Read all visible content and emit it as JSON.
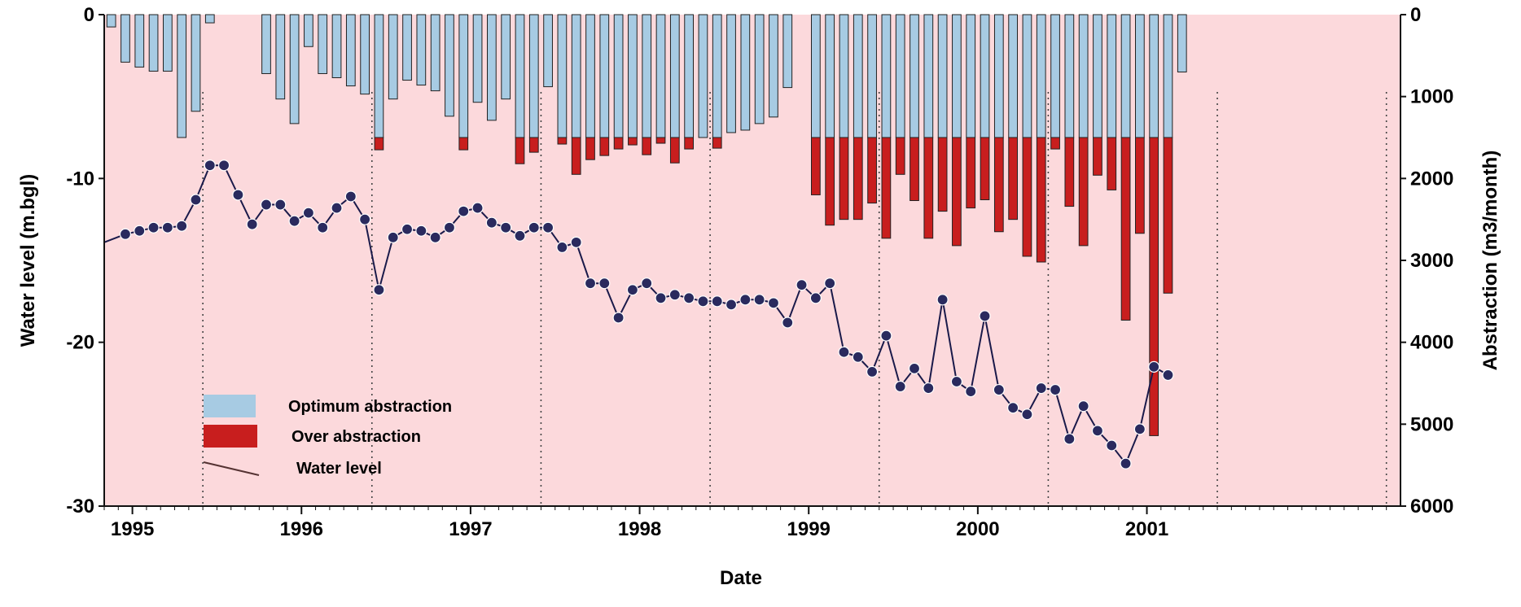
{
  "chart_data": {
    "type": "bar+line",
    "xlabel": "Date",
    "ylabel_left": "Water level (m.bgl)",
    "ylabel_right": "Abstraction (m3/month)",
    "y_left_ticks": [
      "0",
      "-10",
      "-20",
      "-30"
    ],
    "y_left_range": [
      -30,
      0
    ],
    "y_right_ticks": [
      "0",
      "1000",
      "2000",
      "3000",
      "4000",
      "5000",
      "6000"
    ],
    "y_right_range": [
      0,
      6000
    ],
    "year_labels": [
      "1995",
      "1996",
      "1997",
      "1998",
      "1999",
      "2000",
      "2001"
    ],
    "optimum_threshold": 1500,
    "legend": {
      "optimum": "Optimum abstraction",
      "over": "Over abstraction",
      "line": "Water level"
    },
    "colors": {
      "background": "#fcd9dc",
      "optimum": "#a7cbe3",
      "over": "#c81e1e",
      "line": "#1a1a4a",
      "marker": "#2a2a5e"
    },
    "months": [
      "1994-11",
      "1994-12",
      "1995-01",
      "1995-02",
      "1995-03",
      "1995-04",
      "1995-05",
      "1995-06",
      "1995-07",
      "1995-08",
      "1995-09",
      "1995-10",
      "1995-11",
      "1995-12",
      "1996-01",
      "1996-02",
      "1996-03",
      "1996-04",
      "1996-05",
      "1996-06",
      "1996-07",
      "1996-08",
      "1996-09",
      "1996-10",
      "1996-11",
      "1996-12",
      "1997-01",
      "1997-02",
      "1997-03",
      "1997-04",
      "1997-05",
      "1997-06",
      "1997-07",
      "1997-08",
      "1997-09",
      "1997-10",
      "1997-11",
      "1997-12",
      "1998-01",
      "1998-02",
      "1998-03",
      "1998-04",
      "1998-05",
      "1998-06",
      "1998-07",
      "1998-08",
      "1998-09",
      "1998-10",
      "1998-11",
      "1998-12",
      "1999-01",
      "1999-02",
      "1999-03",
      "1999-04",
      "1999-05",
      "1999-06",
      "1999-07",
      "1999-08",
      "1999-09",
      "1999-10",
      "1999-11",
      "1999-12",
      "2000-01",
      "2000-02",
      "2000-03",
      "2000-04",
      "2000-05",
      "2000-06",
      "2000-07",
      "2000-08",
      "2000-09",
      "2000-10",
      "2000-11",
      "2000-12",
      "2001-01",
      "2001-02",
      "2001-03",
      "2001-04",
      "2001-05",
      "2001-06",
      "2001-07",
      "2001-08",
      "2001-09",
      "2001-10",
      "2001-11",
      "2001-12",
      "2002-01",
      "2002-02",
      "2002-03",
      "2002-04",
      "2002-05",
      "2002-06"
    ],
    "abstraction": [
      150,
      580,
      640,
      690,
      690,
      1500,
      1180,
      100,
      0,
      0,
      0,
      720,
      1030,
      1330,
      390,
      720,
      770,
      870,
      970,
      1650,
      1030,
      800,
      860,
      930,
      1240,
      1650,
      1070,
      1290,
      1030,
      1820,
      1680,
      880,
      1580,
      1950,
      1770,
      1720,
      1640,
      1590,
      1710,
      1570,
      1810,
      1640,
      1500,
      1630,
      1440,
      1410,
      1330,
      1250,
      890,
      0,
      2200,
      2570,
      2500,
      2500,
      2300,
      2730,
      1950,
      2270,
      2730,
      2400,
      2820,
      2360,
      2260,
      2650,
      2500,
      2950,
      3020,
      1640,
      2340,
      2820,
      1960,
      2140,
      3730,
      2670,
      5140,
      3400,
      700,
      0,
      0,
      0,
      0,
      0,
      0,
      0,
      0,
      0,
      0,
      0,
      0,
      0,
      0,
      0
    ],
    "water_level": [
      null,
      -13.4,
      -13.2,
      -13.0,
      -13.0,
      -12.9,
      -11.3,
      -9.2,
      -9.2,
      -11.0,
      -12.8,
      -11.6,
      -11.6,
      -12.6,
      -12.1,
      -13.0,
      -11.8,
      -11.1,
      -12.5,
      -16.8,
      -13.6,
      -13.1,
      -13.2,
      -13.6,
      -13.0,
      -12.0,
      -11.8,
      -12.7,
      -13.0,
      -13.5,
      -13.0,
      -13.0,
      -14.2,
      -13.9,
      -16.4,
      -16.4,
      -18.5,
      -16.8,
      -16.4,
      -17.3,
      -17.1,
      -17.3,
      -17.5,
      -17.5,
      -17.7,
      -17.4,
      -17.4,
      -17.6,
      -18.8,
      -16.5,
      -17.3,
      -16.4,
      -20.6,
      -20.9,
      -21.8,
      -19.6,
      -22.7,
      -21.6,
      -22.8,
      -17.4,
      -22.4,
      -23.0,
      -18.4,
      -22.9,
      -24.0,
      -24.4,
      -22.8,
      -22.9,
      -25.9,
      -23.9,
      -25.4,
      -26.3,
      -27.4,
      -25.3,
      -21.5,
      -22.0,
      null,
      null,
      null,
      null,
      null,
      null,
      null,
      null,
      null,
      null,
      null,
      null,
      null,
      null,
      null,
      null
    ]
  }
}
